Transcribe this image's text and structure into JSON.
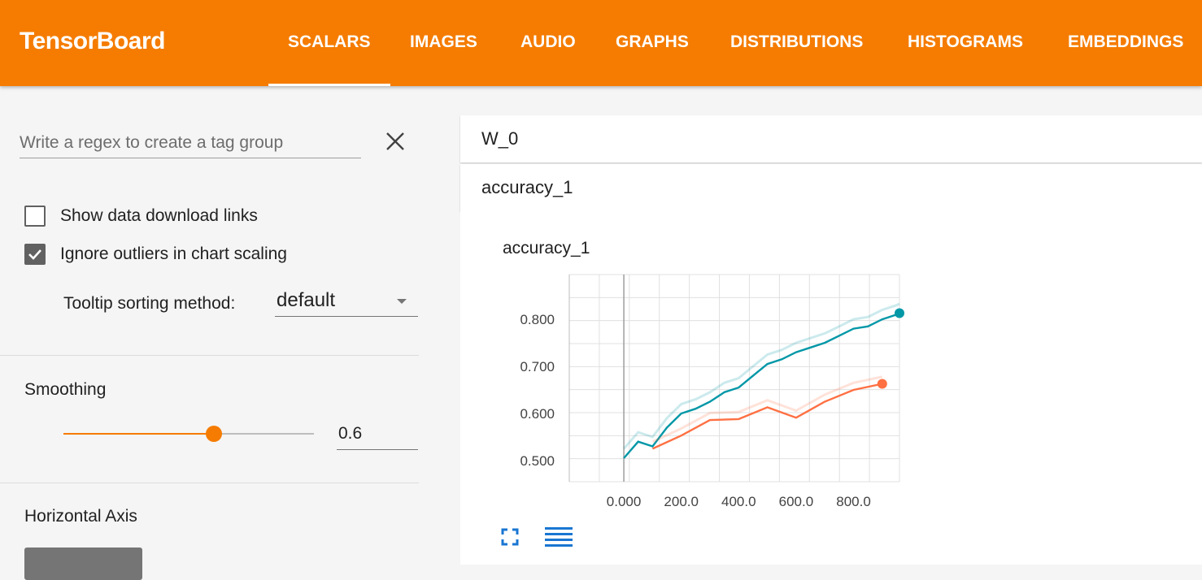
{
  "app": {
    "title": "TensorBoard",
    "tabs": [
      {
        "label": "SCALARS",
        "active": true
      },
      {
        "label": "IMAGES",
        "active": false
      },
      {
        "label": "AUDIO",
        "active": false
      },
      {
        "label": "GRAPHS",
        "active": false
      },
      {
        "label": "DISTRIBUTIONS",
        "active": false
      },
      {
        "label": "HISTOGRAMS",
        "active": false
      },
      {
        "label": "EMBEDDINGS",
        "active": false
      }
    ],
    "accent_color": "#f57c00"
  },
  "sidebar": {
    "regex_placeholder": "Write a regex to create a tag group",
    "regex_value": "",
    "show_download_links": {
      "label": "Show data download links",
      "checked": false
    },
    "ignore_outliers": {
      "label": "Ignore outliers in chart scaling",
      "checked": true
    },
    "tooltip_sorting": {
      "label": "Tooltip sorting method:",
      "value": "default"
    },
    "smoothing": {
      "title": "Smoothing",
      "value": "0.6",
      "fraction": 0.6
    },
    "horizontal_axis": {
      "title": "Horizontal Axis"
    }
  },
  "main": {
    "categories": [
      {
        "name": "W_0"
      },
      {
        "name": "accuracy_1"
      }
    ],
    "chart_title": "accuracy_1"
  },
  "chart_data": {
    "type": "line",
    "title": "accuracy_1",
    "xlabel": "",
    "ylabel": "",
    "x_ticks": [
      "0.000",
      "200.0",
      "400.0",
      "600.0",
      "800.0"
    ],
    "y_ticks": [
      "0.500",
      "0.600",
      "0.700",
      "0.800"
    ],
    "xlim": [
      -190,
      960
    ],
    "ylim": [
      0.455,
      0.895
    ],
    "grid": true,
    "series": [
      {
        "color": "#0097a7",
        "smoothed": true,
        "x": [
          0,
          50,
          100,
          150,
          200,
          250,
          300,
          350,
          400,
          450,
          500,
          550,
          600,
          650,
          700,
          750,
          800,
          850,
          900,
          950,
          960
        ],
        "y": [
          0.505,
          0.54,
          0.53,
          0.57,
          0.6,
          0.61,
          0.625,
          0.645,
          0.655,
          0.68,
          0.705,
          0.715,
          0.73,
          0.74,
          0.75,
          0.765,
          0.78,
          0.785,
          0.8,
          0.81,
          0.813
        ]
      },
      {
        "color": "#ff7043",
        "smoothed": true,
        "x": [
          100,
          200,
          300,
          400,
          500,
          600,
          700,
          800,
          900
        ],
        "y": [
          0.525,
          0.553,
          0.586,
          0.588,
          0.613,
          0.591,
          0.625,
          0.65,
          0.663
        ]
      }
    ]
  }
}
